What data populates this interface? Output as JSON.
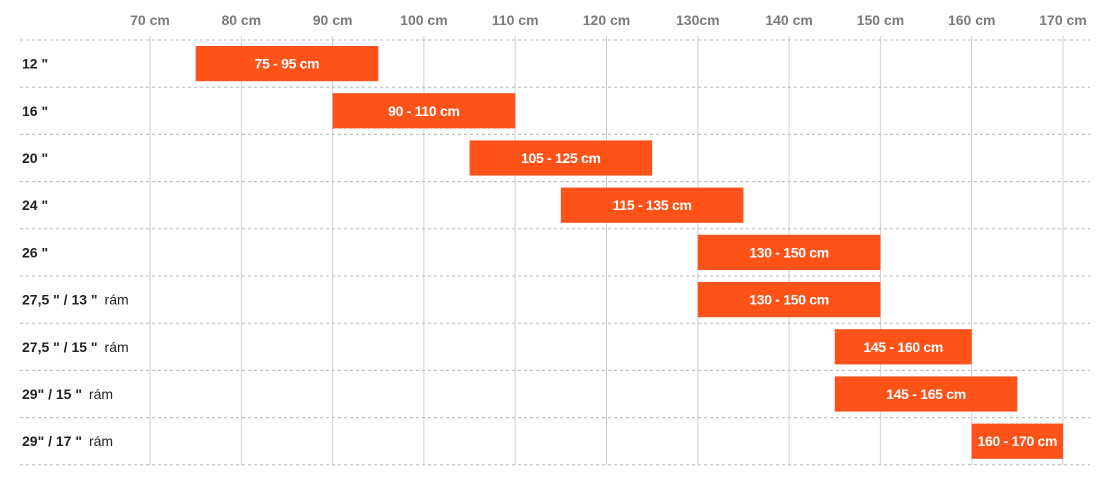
{
  "chart_data": {
    "type": "bar",
    "orientation": "horizontal-range",
    "x_ticks": [
      "70 cm",
      "80 cm",
      "90 cm",
      "100 cm",
      "110 cm",
      "120 cm",
      "130cm",
      "140 cm",
      "150 cm",
      "160 cm",
      "170 cm"
    ],
    "x_tick_values": [
      70,
      80,
      90,
      100,
      110,
      120,
      130,
      140,
      150,
      160,
      170
    ],
    "xlim": [
      70,
      170
    ],
    "grid": true,
    "bar_color": "#ff5219",
    "rows": [
      {
        "label": "12 \"",
        "suffix": "",
        "start": 75,
        "end": 95,
        "bar_label": "75 - 95 cm"
      },
      {
        "label": "16 \"",
        "suffix": "",
        "start": 90,
        "end": 110,
        "bar_label": "90 - 110 cm"
      },
      {
        "label": "20 \"",
        "suffix": "",
        "start": 105,
        "end": 125,
        "bar_label": "105 - 125 cm"
      },
      {
        "label": "24 \"",
        "suffix": "",
        "start": 115,
        "end": 135,
        "bar_label": "115 - 135 cm"
      },
      {
        "label": "26 \"",
        "suffix": "",
        "start": 130,
        "end": 150,
        "bar_label": "130 - 150 cm"
      },
      {
        "label": "27,5 \" / 13 \"",
        "suffix": "rám",
        "start": 130,
        "end": 150,
        "bar_label": "130 - 150 cm"
      },
      {
        "label": "27,5 \" / 15 \"",
        "suffix": "rám",
        "start": 145,
        "end": 160,
        "bar_label": "145 -  160 cm"
      },
      {
        "label": "29\" / 15 \"",
        "suffix": "rám",
        "start": 145,
        "end": 165,
        "bar_label": "145 - 165 cm"
      },
      {
        "label": "29\" / 17 \"",
        "suffix": "rám",
        "start": 160,
        "end": 170,
        "bar_label": "160 - 170 cm"
      }
    ]
  }
}
